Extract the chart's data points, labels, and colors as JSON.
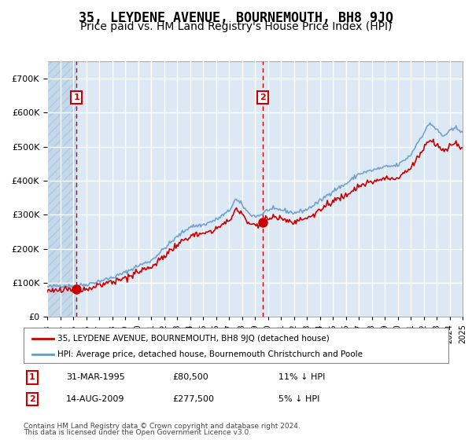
{
  "title": "35, LEYDENE AVENUE, BOURNEMOUTH, BH8 9JQ",
  "subtitle": "Price paid vs. HM Land Registry's House Price Index (HPI)",
  "title_fontsize": 12,
  "subtitle_fontsize": 10,
  "bg_color": "#dce9f5",
  "hatch_color": "#b0c8e0",
  "plot_bg": "#dce9f5",
  "grid_color": "#ffffff",
  "ylim": [
    0,
    750000
  ],
  "yticks": [
    0,
    100000,
    200000,
    300000,
    400000,
    500000,
    600000,
    700000
  ],
  "ytick_labels": [
    "£0",
    "£100K",
    "£200K",
    "£300K",
    "£400K",
    "£500K",
    "£600K",
    "£700K"
  ],
  "xmin_year": 1993,
  "xmax_year": 2025,
  "xticks": [
    1993,
    1994,
    1995,
    1996,
    1997,
    1998,
    1999,
    2000,
    2001,
    2002,
    2003,
    2004,
    2005,
    2006,
    2007,
    2008,
    2009,
    2010,
    2011,
    2012,
    2013,
    2014,
    2015,
    2016,
    2017,
    2018,
    2019,
    2020,
    2021,
    2022,
    2023,
    2024,
    2025
  ],
  "sale1_date": 1995.25,
  "sale1_price": 80500,
  "sale1_label": "1",
  "sale2_date": 2009.62,
  "sale2_price": 277500,
  "sale2_label": "2",
  "red_line_color": "#cc0000",
  "blue_line_color": "#6699cc",
  "dashed_line_color": "#cc0000",
  "marker_color": "#cc0000",
  "legend_label_red": "35, LEYDENE AVENUE, BOURNEMOUTH, BH8 9JQ (detached house)",
  "legend_label_blue": "HPI: Average price, detached house, Bournemouth Christchurch and Poole",
  "annotation1_date": "31-MAR-1995",
  "annotation1_price": "£80,500",
  "annotation1_hpi": "11% ↓ HPI",
  "annotation2_date": "14-AUG-2009",
  "annotation2_price": "£277,500",
  "annotation2_hpi": "5% ↓ HPI",
  "footnote1": "Contains HM Land Registry data © Crown copyright and database right 2024.",
  "footnote2": "This data is licensed under the Open Government Licence v3.0."
}
